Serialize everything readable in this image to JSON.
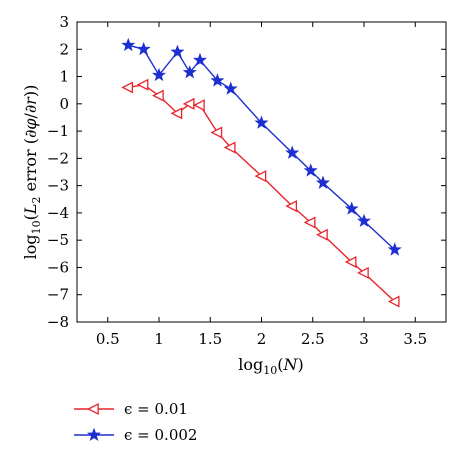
{
  "chart_data": {
    "type": "line",
    "title": "",
    "xlabel": "log10(N)",
    "ylabel": "log10(L2 error (∂φ/∂r))",
    "xlim": [
      0.2,
      3.8
    ],
    "ylim": [
      -8,
      3
    ],
    "xticks": [
      "0.5",
      "1",
      "1.5",
      "2",
      "2.5",
      "3",
      "3.5"
    ],
    "yticks": [
      "3",
      "2",
      "1",
      "0",
      "−1",
      "−2",
      "−3",
      "−4",
      "−5",
      "−6",
      "−7",
      "−8"
    ],
    "grid": false,
    "legend_position": "below",
    "series": [
      {
        "name": "ϵ = 0.01",
        "color": "#e8232a",
        "marker": "triangle-left",
        "x": [
          0.7,
          0.85,
          1.0,
          1.18,
          1.3,
          1.4,
          1.57,
          1.7,
          2.0,
          2.3,
          2.48,
          2.6,
          2.88,
          3.0,
          3.3
        ],
        "y": [
          0.6,
          0.7,
          0.3,
          -0.35,
          0.0,
          -0.05,
          -1.05,
          -1.6,
          -2.65,
          -3.75,
          -4.35,
          -4.8,
          -5.8,
          -6.2,
          -7.25
        ]
      },
      {
        "name": "ϵ = 0.002",
        "color": "#1e2fd1",
        "marker": "star",
        "x": [
          0.7,
          0.85,
          1.0,
          1.18,
          1.3,
          1.4,
          1.57,
          1.7,
          2.0,
          2.3,
          2.48,
          2.6,
          2.88,
          3.0,
          3.3
        ],
        "y": [
          2.15,
          2.0,
          1.05,
          1.9,
          1.15,
          1.6,
          0.85,
          0.55,
          -0.7,
          -1.8,
          -2.45,
          -2.9,
          -3.85,
          -4.3,
          -5.35
        ]
      }
    ]
  }
}
